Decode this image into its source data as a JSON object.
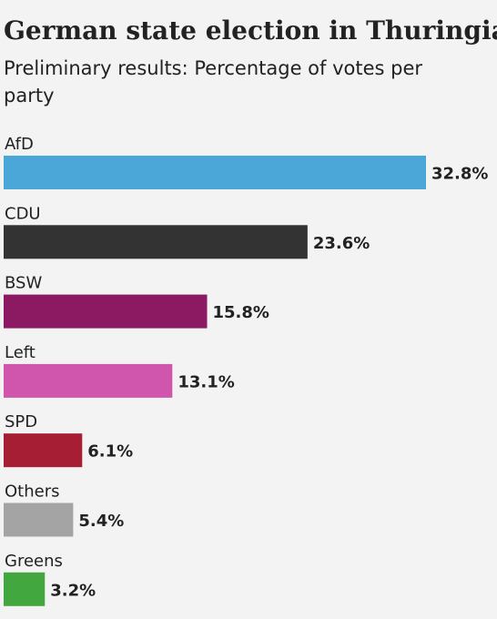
{
  "header": {
    "title": "German state election in Thuringia",
    "subtitle": "Preliminary results: Percentage of votes per party"
  },
  "colors": {
    "background": "#f3f3f3",
    "text": "#222222"
  },
  "chart_data": {
    "type": "bar",
    "orientation": "horizontal",
    "title": "German state election in Thuringia",
    "subtitle": "Preliminary results: Percentage of votes per party",
    "xlabel": "",
    "ylabel": "",
    "grid": false,
    "legend": "none",
    "xlim": [
      0,
      32.8
    ],
    "categories": [
      "AfD",
      "CDU",
      "BSW",
      "Left",
      "SPD",
      "Others",
      "Greens"
    ],
    "values": [
      32.8,
      23.6,
      15.8,
      13.1,
      6.1,
      5.4,
      3.2
    ],
    "value_labels": [
      "32.8%",
      "23.6%",
      "15.8%",
      "13.1%",
      "6.1%",
      "5.4%",
      "3.2%"
    ],
    "bar_colors": [
      "#4aa7d7",
      "#333333",
      "#8b1a62",
      "#d055ad",
      "#a61e33",
      "#a5a4a4",
      "#43a73f"
    ]
  }
}
